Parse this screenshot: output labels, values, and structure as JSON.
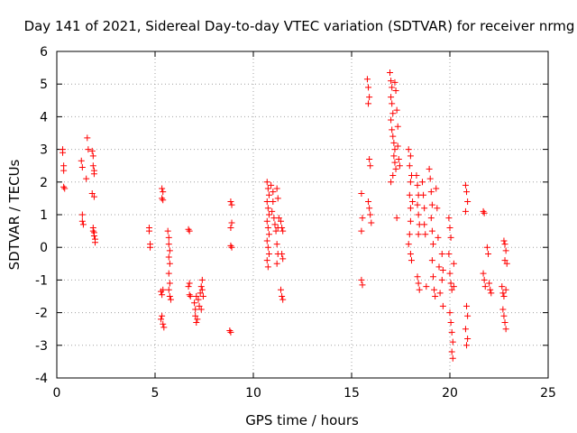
{
  "chart_data": {
    "type": "scatter",
    "title": "Day 141 of 2021, Sidereal Day-to-day VTEC variation (SDTVAR) for receiver nrmg",
    "xlabel": "GPS time / hours",
    "ylabel": "SDTVAR / TECUs",
    "xlim": [
      0,
      25
    ],
    "ylim": [
      -4,
      6
    ],
    "xticks": [
      0,
      5,
      10,
      15,
      20,
      25
    ],
    "yticks": [
      -4,
      -3,
      -2,
      -1,
      0,
      1,
      2,
      3,
      4,
      5,
      6
    ],
    "grid": true,
    "marker": "+",
    "color": "#ff0000",
    "series": [
      {
        "name": "nrmg",
        "points": [
          [
            0.3,
            3.0
          ],
          [
            0.3,
            2.9
          ],
          [
            0.35,
            2.5
          ],
          [
            0.35,
            2.35
          ],
          [
            0.35,
            1.85
          ],
          [
            0.4,
            1.8
          ],
          [
            1.25,
            2.65
          ],
          [
            1.3,
            2.45
          ],
          [
            1.3,
            1.0
          ],
          [
            1.3,
            0.8
          ],
          [
            1.35,
            0.7
          ],
          [
            1.5,
            2.1
          ],
          [
            1.55,
            3.35
          ],
          [
            1.6,
            3.0
          ],
          [
            1.8,
            2.95
          ],
          [
            1.85,
            2.8
          ],
          [
            1.85,
            2.5
          ],
          [
            1.9,
            2.35
          ],
          [
            1.9,
            2.25
          ],
          [
            1.8,
            1.65
          ],
          [
            1.9,
            1.55
          ],
          [
            1.85,
            0.6
          ],
          [
            1.9,
            0.45
          ],
          [
            1.9,
            0.35
          ],
          [
            1.95,
            0.25
          ],
          [
            1.95,
            0.15
          ],
          [
            1.85,
            0.5
          ],
          [
            4.7,
            0.6
          ],
          [
            4.7,
            0.5
          ],
          [
            4.75,
            0.1
          ],
          [
            4.75,
            0.0
          ],
          [
            5.35,
            1.8
          ],
          [
            5.4,
            1.7
          ],
          [
            5.35,
            1.5
          ],
          [
            5.4,
            1.45
          ],
          [
            5.3,
            -1.35
          ],
          [
            5.35,
            -1.45
          ],
          [
            5.4,
            -1.3
          ],
          [
            5.3,
            -2.2
          ],
          [
            5.35,
            -2.1
          ],
          [
            5.4,
            -2.35
          ],
          [
            5.45,
            -2.45
          ],
          [
            5.65,
            0.5
          ],
          [
            5.7,
            0.3
          ],
          [
            5.7,
            0.1
          ],
          [
            5.75,
            -0.1
          ],
          [
            5.7,
            -0.3
          ],
          [
            5.75,
            -0.5
          ],
          [
            5.7,
            -0.8
          ],
          [
            5.75,
            -1.1
          ],
          [
            5.7,
            -1.3
          ],
          [
            5.75,
            -1.5
          ],
          [
            5.8,
            -1.6
          ],
          [
            6.7,
            0.55
          ],
          [
            6.75,
            0.5
          ],
          [
            6.75,
            -1.1
          ],
          [
            6.7,
            -1.2
          ],
          [
            6.75,
            -1.45
          ],
          [
            6.8,
            -1.5
          ],
          [
            7.0,
            -1.7
          ],
          [
            7.05,
            -1.9
          ],
          [
            7.05,
            -2.1
          ],
          [
            7.1,
            -2.3
          ],
          [
            7.15,
            -2.2
          ],
          [
            7.1,
            -1.5
          ],
          [
            7.2,
            -1.6
          ],
          [
            7.25,
            -1.8
          ],
          [
            7.3,
            -1.4
          ],
          [
            7.35,
            -1.2
          ],
          [
            7.4,
            -1.0
          ],
          [
            7.4,
            -1.3
          ],
          [
            7.45,
            -1.5
          ],
          [
            7.35,
            -1.9
          ],
          [
            8.85,
            1.4
          ],
          [
            8.9,
            1.3
          ],
          [
            8.9,
            0.75
          ],
          [
            8.85,
            0.6
          ],
          [
            8.85,
            0.05
          ],
          [
            8.9,
            0.0
          ],
          [
            8.8,
            -2.55
          ],
          [
            8.85,
            -2.6
          ],
          [
            10.7,
            2.0
          ],
          [
            10.75,
            1.8
          ],
          [
            10.8,
            1.6
          ],
          [
            10.7,
            1.4
          ],
          [
            10.75,
            1.2
          ],
          [
            10.8,
            1.0
          ],
          [
            10.7,
            0.8
          ],
          [
            10.75,
            0.6
          ],
          [
            10.8,
            0.4
          ],
          [
            10.7,
            0.2
          ],
          [
            10.75,
            0.0
          ],
          [
            10.8,
            -0.2
          ],
          [
            10.7,
            -0.4
          ],
          [
            10.75,
            -0.6
          ],
          [
            10.9,
            1.9
          ],
          [
            11.0,
            1.7
          ],
          [
            11.0,
            1.4
          ],
          [
            10.95,
            1.1
          ],
          [
            11.05,
            0.9
          ],
          [
            11.1,
            0.7
          ],
          [
            11.15,
            0.5
          ],
          [
            11.2,
            1.8
          ],
          [
            11.25,
            1.5
          ],
          [
            11.3,
            0.9
          ],
          [
            11.25,
            0.6
          ],
          [
            11.2,
            0.1
          ],
          [
            11.25,
            -0.2
          ],
          [
            11.2,
            -0.5
          ],
          [
            11.4,
            0.8
          ],
          [
            11.45,
            0.6
          ],
          [
            11.5,
            0.5
          ],
          [
            11.45,
            -0.2
          ],
          [
            11.5,
            -0.35
          ],
          [
            11.4,
            -1.3
          ],
          [
            11.45,
            -1.5
          ],
          [
            11.5,
            -1.6
          ],
          [
            15.5,
            1.65
          ],
          [
            15.55,
            0.9
          ],
          [
            15.5,
            0.5
          ],
          [
            15.5,
            -1.0
          ],
          [
            15.55,
            -1.15
          ],
          [
            15.8,
            5.15
          ],
          [
            15.85,
            4.9
          ],
          [
            15.9,
            4.6
          ],
          [
            15.85,
            4.4
          ],
          [
            15.9,
            2.7
          ],
          [
            15.95,
            2.5
          ],
          [
            15.85,
            1.4
          ],
          [
            15.9,
            1.2
          ],
          [
            15.95,
            1.0
          ],
          [
            16.0,
            0.75
          ],
          [
            16.95,
            5.35
          ],
          [
            17.0,
            5.1
          ],
          [
            17.05,
            4.9
          ],
          [
            17.0,
            4.6
          ],
          [
            17.05,
            4.4
          ],
          [
            17.1,
            4.1
          ],
          [
            17.0,
            3.9
          ],
          [
            17.05,
            3.6
          ],
          [
            17.1,
            3.4
          ],
          [
            17.15,
            3.2
          ],
          [
            17.2,
            3.0
          ],
          [
            17.15,
            2.8
          ],
          [
            17.2,
            2.6
          ],
          [
            17.25,
            2.4
          ],
          [
            17.1,
            2.2
          ],
          [
            17.0,
            2.0
          ],
          [
            17.2,
            5.05
          ],
          [
            17.25,
            4.8
          ],
          [
            17.3,
            4.2
          ],
          [
            17.35,
            3.7
          ],
          [
            17.35,
            3.1
          ],
          [
            17.4,
            2.7
          ],
          [
            17.45,
            2.5
          ],
          [
            17.3,
            0.9
          ],
          [
            17.9,
            3.0
          ],
          [
            17.95,
            2.5
          ],
          [
            18.0,
            2.0
          ],
          [
            17.95,
            1.6
          ],
          [
            18.0,
            1.2
          ],
          [
            18.0,
            0.8
          ],
          [
            17.95,
            0.4
          ],
          [
            17.9,
            0.1
          ],
          [
            18.0,
            -0.2
          ],
          [
            18.05,
            -0.4
          ],
          [
            18.0,
            2.8
          ],
          [
            18.05,
            2.2
          ],
          [
            18.1,
            1.4
          ],
          [
            18.3,
            2.2
          ],
          [
            18.35,
            1.9
          ],
          [
            18.4,
            1.6
          ],
          [
            18.35,
            1.3
          ],
          [
            18.4,
            1.0
          ],
          [
            18.45,
            0.7
          ],
          [
            18.4,
            0.4
          ],
          [
            18.35,
            -0.9
          ],
          [
            18.4,
            -1.1
          ],
          [
            18.45,
            -1.3
          ],
          [
            18.6,
            2.0
          ],
          [
            18.65,
            1.6
          ],
          [
            18.7,
            1.2
          ],
          [
            18.7,
            0.7
          ],
          [
            18.75,
            0.4
          ],
          [
            18.8,
            -1.2
          ],
          [
            18.95,
            2.4
          ],
          [
            19.0,
            2.1
          ],
          [
            19.05,
            1.7
          ],
          [
            19.1,
            1.3
          ],
          [
            19.05,
            0.9
          ],
          [
            19.1,
            0.5
          ],
          [
            19.15,
            0.1
          ],
          [
            19.1,
            -0.4
          ],
          [
            19.15,
            -0.9
          ],
          [
            19.2,
            -1.3
          ],
          [
            19.25,
            -1.5
          ],
          [
            19.3,
            1.8
          ],
          [
            19.35,
            1.2
          ],
          [
            19.4,
            0.3
          ],
          [
            19.45,
            -0.6
          ],
          [
            19.5,
            -1.4
          ],
          [
            19.6,
            -0.2
          ],
          [
            19.65,
            -0.7
          ],
          [
            19.6,
            -1.0
          ],
          [
            19.65,
            -1.8
          ],
          [
            19.95,
            0.9
          ],
          [
            20.0,
            0.6
          ],
          [
            20.05,
            0.3
          ],
          [
            19.95,
            -0.2
          ],
          [
            20.0,
            -0.8
          ],
          [
            20.05,
            -1.1
          ],
          [
            20.1,
            -1.3
          ],
          [
            20.0,
            -2.0
          ],
          [
            20.05,
            -2.3
          ],
          [
            20.1,
            -2.6
          ],
          [
            20.15,
            -2.9
          ],
          [
            20.1,
            -3.2
          ],
          [
            20.15,
            -3.4
          ],
          [
            20.2,
            -0.5
          ],
          [
            20.2,
            -1.2
          ],
          [
            20.8,
            1.9
          ],
          [
            20.85,
            1.7
          ],
          [
            20.9,
            1.4
          ],
          [
            20.8,
            1.1
          ],
          [
            20.85,
            -1.8
          ],
          [
            20.9,
            -2.1
          ],
          [
            20.8,
            -2.5
          ],
          [
            20.9,
            -2.8
          ],
          [
            20.85,
            -3.0
          ],
          [
            21.7,
            1.1
          ],
          [
            21.75,
            1.05
          ],
          [
            21.7,
            -0.8
          ],
          [
            21.75,
            -1.0
          ],
          [
            21.8,
            -1.2
          ],
          [
            21.9,
            0.0
          ],
          [
            21.95,
            -0.2
          ],
          [
            22.0,
            -1.1
          ],
          [
            22.05,
            -1.3
          ],
          [
            22.1,
            -1.4
          ],
          [
            22.65,
            -1.2
          ],
          [
            22.7,
            -1.4
          ],
          [
            22.75,
            -1.5
          ],
          [
            22.7,
            -1.9
          ],
          [
            22.75,
            -2.1
          ],
          [
            22.8,
            -2.3
          ],
          [
            22.85,
            -2.5
          ],
          [
            22.75,
            0.2
          ],
          [
            22.8,
            0.1
          ],
          [
            22.85,
            -0.1
          ],
          [
            22.8,
            -0.4
          ],
          [
            22.9,
            -0.5
          ],
          [
            22.85,
            -1.3
          ]
        ]
      }
    ]
  }
}
